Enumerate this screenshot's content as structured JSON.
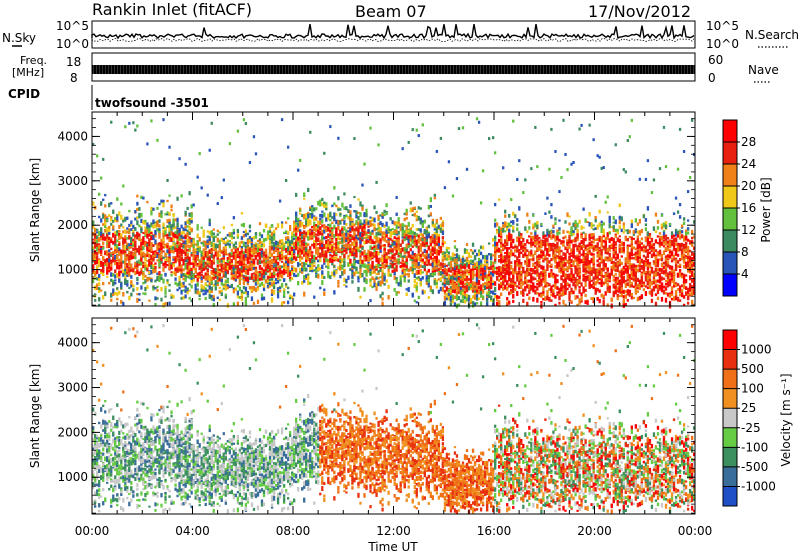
{
  "header": {
    "station": "Rankin Inlet (fitACF)",
    "beam": "Beam 07",
    "date": "17/Nov/2012"
  },
  "aux": {
    "nsky_label": "N.Sky",
    "nsearch_label": "N.Search",
    "noise_ticks": [
      "10^5",
      "10^0"
    ],
    "freq_label": "Freq.",
    "freq_unit": "[MHz]",
    "freq_ticks": [
      "18",
      "8"
    ],
    "nave_label": "Nave",
    "nave_ticks": [
      "60",
      "0"
    ],
    "cpid_label": "CPID",
    "cpid_value": "twofsound  -3501"
  },
  "chart_data": [
    {
      "type": "heatmap",
      "name": "power",
      "ylabel": "Slant Range [km]",
      "x_range_hours": [
        0,
        24
      ],
      "ylim": [
        180,
        4550
      ],
      "x_ticks": [
        "00:00",
        "04:00",
        "08:00",
        "12:00",
        "16:00",
        "20:00",
        "00:00"
      ],
      "y_ticks": [
        1000,
        2000,
        3000,
        4000
      ],
      "colorbar": {
        "label": "Power [dB]",
        "ticks": [
          4,
          8,
          12,
          16,
          20,
          24,
          28
        ],
        "colors": [
          "#0000ff",
          "#2a55b8",
          "#3c8a60",
          "#62c03c",
          "#f0c818",
          "#f08018",
          "#e82010",
          "#ff0000"
        ]
      }
    },
    {
      "type": "heatmap",
      "name": "velocity",
      "ylabel": "Slant Range [km]",
      "xlabel": "Time UT",
      "x_range_hours": [
        0,
        24
      ],
      "ylim": [
        180,
        4550
      ],
      "x_ticks": [
        "00:00",
        "04:00",
        "08:00",
        "12:00",
        "16:00",
        "20:00",
        "00:00"
      ],
      "y_ticks": [
        1000,
        2000,
        3000,
        4000
      ],
      "colorbar": {
        "label": "Velocity  [m s⁻¹]",
        "ticks": [
          "1000",
          "500",
          "100",
          "25",
          "-25",
          "-100",
          "-500",
          "-1000"
        ],
        "colors": [
          "#2050c8",
          "#3a6e9a",
          "#3c9060",
          "#66cc44",
          "#c8c8c8",
          "#f09020",
          "#f07018",
          "#e83010",
          "#ff0000"
        ]
      }
    }
  ]
}
